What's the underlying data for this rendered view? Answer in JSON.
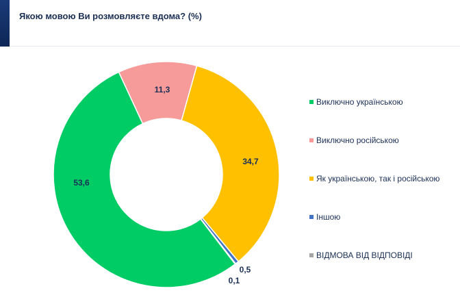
{
  "header": {
    "title": "Якою мовою Ви розмовляєте вдома? (%)"
  },
  "chart_data": {
    "type": "pie",
    "title": "Якою мовою Ви розмовляєте вдома? (%)",
    "donut": true,
    "legend_position": "right",
    "series": [
      {
        "name": "Виключно українською",
        "value": 53.6,
        "label": "53,6",
        "color": "#00cc66"
      },
      {
        "name": "Виключно російською",
        "value": 11.3,
        "label": "11,3",
        "color": "#f79a9a"
      },
      {
        "name": "Як українською, так і російською",
        "value": 34.7,
        "label": "34,7",
        "color": "#ffc000"
      },
      {
        "name": "Іншою",
        "value": 0.5,
        "label": "0,5",
        "color": "#4472c4"
      },
      {
        "name": "ВІДМОВА ВІД ВІДПОВІДІ",
        "value": 0.1,
        "label": "0,1",
        "color": "#a5a5a5"
      }
    ]
  }
}
